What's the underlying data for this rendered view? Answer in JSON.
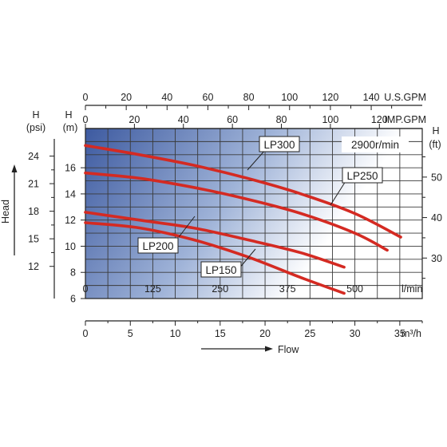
{
  "colors": {
    "curve": "#d42a22",
    "grid": "#3a3a3a",
    "gradient_dark": "#3d5aa0",
    "gradient_light": "#ffffff",
    "text": "#222222"
  },
  "chart_data": {
    "type": "line",
    "title": "",
    "speed_label": "2900r/min",
    "flow_label": "Flow",
    "head_label": "Head",
    "x_axes": {
      "lmin": {
        "unit": "l/min",
        "range": [
          0,
          625
        ],
        "ticks": [
          "0",
          "125",
          "250",
          "375",
          "500"
        ]
      },
      "m3h": {
        "unit": "m³/h",
        "range": [
          0,
          37.5
        ],
        "ticks": [
          "0",
          "5",
          "10",
          "15",
          "20",
          "25",
          "30",
          "35"
        ]
      },
      "imp_gpm": {
        "unit": "IMP.GPM",
        "range": [
          0,
          137.5
        ],
        "ticks": [
          "0",
          "20",
          "40",
          "60",
          "80",
          "100",
          "120"
        ]
      },
      "us_gpm": {
        "unit": "U.S.GPM",
        "range": [
          0,
          165
        ],
        "ticks": [
          "0",
          "20",
          "40",
          "60",
          "80",
          "100",
          "120",
          "140"
        ]
      }
    },
    "y_axes": {
      "m": {
        "title": "H",
        "unit": "(m)",
        "range": [
          6,
          19
        ],
        "ticks": [
          "6",
          "8",
          "10",
          "12",
          "14",
          "16"
        ]
      },
      "psi": {
        "title": "H",
        "unit": "(psi)",
        "range": [
          8.5,
          27
        ],
        "ticks": [
          "12",
          "15",
          "18",
          "21",
          "24"
        ]
      },
      "ft": {
        "title": "H",
        "unit": "(ft)",
        "range": [
          20,
          62
        ],
        "ticks": [
          "30",
          "40",
          "50"
        ]
      }
    },
    "series": [
      {
        "name": "LP300",
        "x": [
          0,
          100,
          200,
          300,
          400,
          500,
          585
        ],
        "y": [
          17.7,
          17.0,
          16.2,
          15.2,
          14.0,
          12.5,
          10.7
        ]
      },
      {
        "name": "LP250",
        "x": [
          0,
          100,
          200,
          300,
          400,
          500,
          560
        ],
        "y": [
          15.6,
          15.2,
          14.5,
          13.6,
          12.5,
          11.0,
          9.7
        ]
      },
      {
        "name": "LP200",
        "x": [
          0,
          100,
          200,
          300,
          400,
          480
        ],
        "y": [
          12.6,
          12.0,
          11.4,
          10.5,
          9.5,
          8.4
        ]
      },
      {
        "name": "LP150",
        "x": [
          0,
          100,
          200,
          300,
          400,
          480
        ],
        "y": [
          11.8,
          11.4,
          10.5,
          9.2,
          7.6,
          6.4
        ]
      }
    ]
  }
}
